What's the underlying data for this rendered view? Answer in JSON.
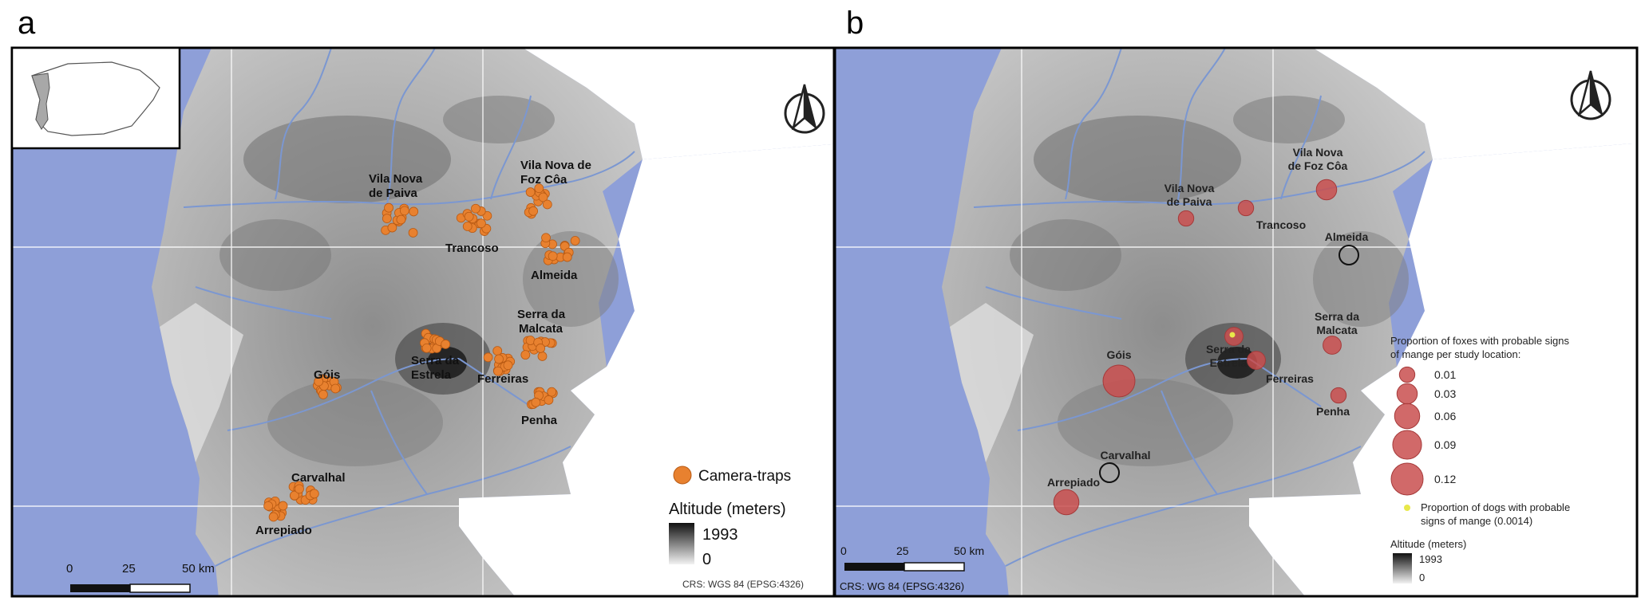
{
  "panels": [
    {
      "letter": "a",
      "places": [
        {
          "name": "Vila Nova de Paiva",
          "lines": [
            "Vila Nova",
            "de Paiva"
          ]
        },
        {
          "name": "Vila Nova de Foz Côa",
          "lines": [
            "Vila Nova de",
            "Foz Côa"
          ]
        },
        {
          "name": "Trancoso",
          "lines": [
            "Trancoso"
          ]
        },
        {
          "name": "Almeida",
          "lines": [
            "Almeida"
          ]
        },
        {
          "name": "Serra da Malcata",
          "lines": [
            "Serra da",
            "Malcata"
          ]
        },
        {
          "name": "Serra da Estrela",
          "lines": [
            "Serra da",
            "Estrela"
          ]
        },
        {
          "name": "Ferreiras",
          "lines": [
            "Ferreiras"
          ]
        },
        {
          "name": "Góis",
          "lines": [
            "Góis"
          ]
        },
        {
          "name": "Penha",
          "lines": [
            "Penha"
          ]
        },
        {
          "name": "Carvalhal",
          "lines": [
            "Carvalhal"
          ]
        },
        {
          "name": "Arrepiado",
          "lines": [
            "Arrepiado"
          ]
        }
      ],
      "legend": {
        "camera_traps_label": "Camera-traps",
        "camera_trap_color": "#e8812f",
        "altitude_title": "Altitude (meters)",
        "altitude_max": "1993",
        "altitude_min": "0"
      },
      "scalebar": {
        "ticks": [
          "0",
          "25",
          "50 km"
        ]
      },
      "crs": "CRS: WGS 84 (EPSG:4326)"
    },
    {
      "letter": "b",
      "places": [
        {
          "name": "Vila Nova de Foz Côa",
          "lines": [
            "Vila Nova",
            "de Foz Côa"
          ],
          "fox_prop": 0.03
        },
        {
          "name": "Vila Nova de Paiva",
          "lines": [
            "Vila Nova",
            "de Paiva"
          ],
          "fox_prop": 0.01
        },
        {
          "name": "Trancoso",
          "lines": [
            "Trancoso"
          ],
          "fox_prop": 0.01
        },
        {
          "name": "Almeida",
          "lines": [
            "Almeida"
          ],
          "fox_prop": 0
        },
        {
          "name": "Serra da Malcata",
          "lines": [
            "Serra da",
            "Malcata"
          ],
          "fox_prop": 0.02
        },
        {
          "name": "Serra da Estrela",
          "lines": [
            "Serra da",
            "Estrela"
          ],
          "fox_prop": 0.02,
          "dog_prop": 0.0014
        },
        {
          "name": "Góis",
          "lines": [
            "Góis"
          ],
          "fox_prop": 0.12
        },
        {
          "name": "Ferreiras",
          "lines": [
            "Ferreiras"
          ],
          "fox_prop": 0.02
        },
        {
          "name": "Penha",
          "lines": [
            "Penha"
          ],
          "fox_prop": 0.01
        },
        {
          "name": "Carvalhal",
          "lines": [
            "Carvalhal"
          ],
          "fox_prop": 0
        },
        {
          "name": "Arrepiado",
          "lines": [
            "Arrepiado"
          ],
          "fox_prop": 0.06
        }
      ],
      "legend": {
        "fox_title_lines": [
          "Proportion of foxes with probable signs",
          "of mange per study location:"
        ],
        "fox_classes": [
          "0.01",
          "0.03",
          "0.06",
          "0.09",
          "0.12"
        ],
        "fox_color": "#c94f4f",
        "dog_label_lines": [
          "Proportion of dogs with probable",
          "signs of mange (0.0014)"
        ],
        "dog_color": "#e8e84a",
        "altitude_title": "Altitude (meters)",
        "altitude_max": "1993",
        "altitude_min": "0"
      },
      "scalebar": {
        "ticks": [
          "0",
          "25",
          "50 km"
        ]
      },
      "crs": "CRS: WG 84 (EPSG:4326)"
    }
  ],
  "colors": {
    "sea": "#8e9fd8",
    "land_low": "#dcdcdc",
    "land_mid": "#9a9a9a",
    "land_high": "#2a2a2a",
    "river": "#7b97d1",
    "graticule": "#ffffff"
  }
}
